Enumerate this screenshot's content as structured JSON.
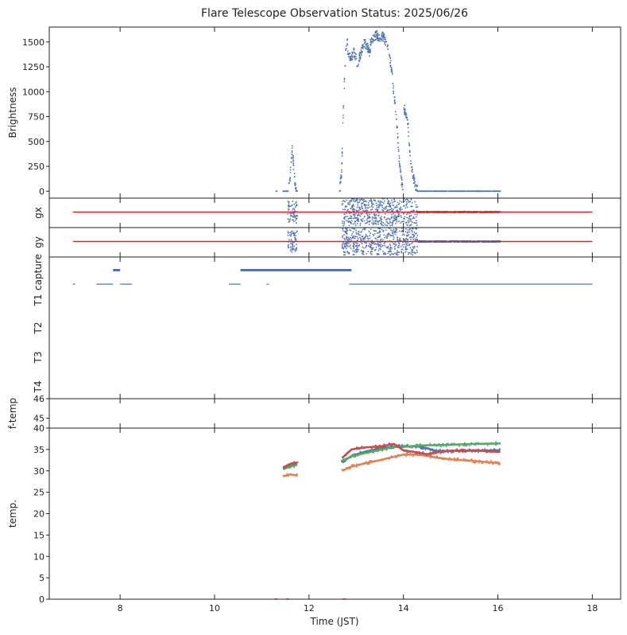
{
  "title": "Flare Telescope Observation Status: 2025/06/26",
  "colors": {
    "blue": "#4c72b0",
    "orange": "#dd8452",
    "green": "#55a868",
    "red": "#c44e52",
    "line_red": "#d62728"
  },
  "x_axis": {
    "label": "Time (JST)",
    "range": [
      6.5,
      18.6
    ],
    "ticks": [
      8,
      10,
      12,
      14,
      16,
      18
    ],
    "tick_labels": [
      "8",
      "10",
      "12",
      "14",
      "16",
      "18"
    ]
  },
  "chart_data": [
    {
      "type": "scatter",
      "name": "brightness",
      "ylabel": "Brightness",
      "ylim": [
        -70,
        1650
      ],
      "yticks": [
        0,
        250,
        500,
        750,
        1000,
        1250,
        1500
      ],
      "ytick_labels": [
        "0",
        "250",
        "500",
        "750",
        "1000",
        "1250",
        "1500"
      ],
      "series": [
        {
          "name": "brightness",
          "color": "blue",
          "segments": [
            {
              "x0": 11.3,
              "x1": 11.32,
              "levels": [
                0
              ]
            },
            {
              "x0": 11.45,
              "x1": 11.55,
              "levels": [
                0
              ]
            },
            {
              "x0": 11.55,
              "x1": 11.75,
              "levels": [
                0,
                50,
                150,
                300,
                470,
                250,
                100,
                20,
                0
              ]
            },
            {
              "x0": 12.65,
              "x1": 12.82,
              "levels": [
                0,
                200,
                930,
                1400,
                1520
              ]
            },
            {
              "x0": 12.82,
              "x1": 13.3,
              "levels": [
                1420,
                1330,
                1400,
                1280,
                1380,
                1500,
                1450,
                1380
              ]
            },
            {
              "x0": 13.3,
              "x1": 13.7,
              "levels": [
                1500,
                1550,
                1570,
                1540,
                1560,
                1500,
                1400
              ]
            },
            {
              "x0": 13.7,
              "x1": 14.0,
              "levels": [
                1350,
                1250,
                1050,
                850,
                600,
                300,
                100,
                20
              ]
            },
            {
              "x0": 14.0,
              "x1": 14.3,
              "levels": [
                850,
                780,
                650,
                300,
                150,
                60,
                20
              ]
            },
            {
              "x0": 14.3,
              "x1": 16.05,
              "levels": [
                0
              ]
            }
          ]
        }
      ]
    },
    {
      "type": "scatter",
      "name": "gx",
      "ylabel": "gx",
      "series": [
        {
          "name": "gx-points",
          "color": "blue",
          "segments": [
            {
              "x0": 11.55,
              "x1": 11.75,
              "spread": 0.8
            },
            {
              "x0": 12.7,
              "x1": 14.3,
              "spread": 1.0
            },
            {
              "x0": 14.3,
              "x1": 16.05,
              "spread": 0.05
            }
          ]
        },
        {
          "name": "gx-reference",
          "color": "line_red",
          "type": "line",
          "x": [
            7.0,
            18.0
          ],
          "y": [
            0,
            0
          ]
        }
      ]
    },
    {
      "type": "scatter",
      "name": "gy",
      "ylabel": "gy",
      "series": [
        {
          "name": "gy-points",
          "color": "blue",
          "segments": [
            {
              "x0": 11.55,
              "x1": 11.75,
              "spread": 0.8
            },
            {
              "x0": 12.7,
              "x1": 14.3,
              "spread": 1.0
            },
            {
              "x0": 14.3,
              "x1": 16.05,
              "spread": 0.05
            }
          ]
        },
        {
          "name": "gy-reference",
          "color": "line_red",
          "type": "line",
          "x": [
            7.0,
            18.0
          ],
          "y": [
            0,
            0
          ]
        }
      ]
    },
    {
      "type": "status",
      "name": "status",
      "row_labels": [
        "capture",
        "T1",
        "T2",
        "T3",
        "T4"
      ],
      "capture_intervals": [
        [
          7.85,
          8.0
        ],
        [
          10.55,
          12.9
        ]
      ],
      "baseline_intervals": [
        [
          7.0,
          7.05
        ],
        [
          7.5,
          7.85
        ],
        [
          8.0,
          8.25
        ],
        [
          10.3,
          10.55
        ],
        [
          11.1,
          11.15
        ],
        [
          12.85,
          18.0
        ]
      ]
    },
    {
      "type": "scatter",
      "name": "ftemp",
      "ylabel": "f-temp",
      "ylim": [
        44.5,
        46
      ],
      "yticks": [
        45,
        46
      ],
      "ytick_labels": [
        "45",
        "46"
      ],
      "series": []
    },
    {
      "type": "line",
      "name": "temp",
      "ylabel": "temp.",
      "ylim": [
        0,
        40
      ],
      "yticks": [
        0,
        5,
        10,
        15,
        20,
        25,
        30,
        35,
        40
      ],
      "ytick_labels": [
        "0",
        "5",
        "10",
        "15",
        "20",
        "25",
        "30",
        "35",
        "40"
      ],
      "series": [
        {
          "name": "temp-blue",
          "color": "blue",
          "x": [
            11.45,
            11.6,
            11.75,
            12.7,
            12.9,
            13.2,
            13.5,
            13.8,
            14.0,
            14.3,
            14.5,
            14.7,
            15.0,
            15.5,
            16.05
          ],
          "y": [
            30.5,
            31.3,
            31.5,
            32.0,
            33.5,
            34.5,
            35.3,
            35.6,
            35.8,
            35.7,
            35.3,
            34.6,
            34.7,
            34.7,
            34.8
          ]
        },
        {
          "name": "temp-orange",
          "color": "orange",
          "x": [
            11.45,
            11.6,
            11.75,
            12.7,
            12.9,
            13.2,
            13.5,
            13.8,
            14.0,
            14.3,
            14.5,
            14.7,
            15.0,
            15.5,
            16.05
          ],
          "y": [
            28.7,
            29.2,
            28.9,
            30.0,
            31.0,
            31.8,
            32.5,
            33.3,
            33.8,
            33.8,
            33.5,
            33.1,
            32.7,
            32.3,
            31.8
          ]
        },
        {
          "name": "temp-green",
          "color": "green",
          "x": [
            11.45,
            11.6,
            11.75,
            12.7,
            12.9,
            13.2,
            13.5,
            13.8,
            14.0,
            14.3,
            14.5,
            14.7,
            15.0,
            15.5,
            16.05
          ],
          "y": [
            30.4,
            31.0,
            31.4,
            32.3,
            33.4,
            34.2,
            34.9,
            35.6,
            35.6,
            35.9,
            36.0,
            36.0,
            36.1,
            36.3,
            36.4
          ]
        },
        {
          "name": "temp-red",
          "color": "red",
          "x": [
            11.45,
            11.6,
            11.75,
            12.7,
            12.9,
            13.2,
            13.5,
            13.8,
            14.0,
            14.3,
            14.5,
            14.7,
            15.0,
            15.5,
            16.05
          ],
          "y": [
            30.8,
            31.6,
            32.0,
            33.0,
            35.0,
            35.5,
            35.7,
            36.3,
            34.8,
            34.3,
            33.9,
            34.3,
            34.7,
            34.8,
            34.4
          ]
        }
      ]
    }
  ]
}
